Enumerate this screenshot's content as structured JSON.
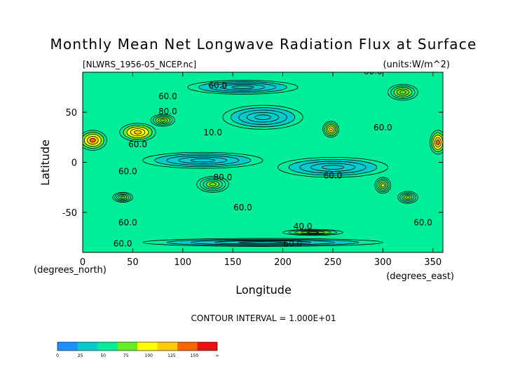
{
  "chart_data": {
    "type": "heatmap",
    "title": "Monthly Mean Net Longwave Radiation Flux at Surface",
    "source_file": "[NLWRS_1956-05_NCEP.nc]",
    "units": "(units:W/m^2)",
    "xlabel": "Longitude",
    "ylabel": "Latitude",
    "x_unit_label": "(degrees_east)",
    "y_unit_label": "(degrees_north)",
    "xlim": [
      0,
      360
    ],
    "ylim": [
      -90,
      90
    ],
    "x_ticks": [
      0,
      50,
      100,
      150,
      200,
      250,
      300,
      350
    ],
    "y_ticks": [
      50,
      0,
      -50
    ],
    "contour_interval_label": "CONTOUR INTERVAL = 1.000E+01",
    "colorbar": {
      "levels": [
        0,
        25,
        50,
        75,
        100,
        125,
        150,
        "∞"
      ],
      "level_labels": [
        "0",
        "25",
        "50",
        "75",
        "100",
        "125",
        "150",
        "∞"
      ],
      "colors": [
        "#1e90ff",
        "#00cccc",
        "#00ee99",
        "#66ee22",
        "#ffff00",
        "#ffcc00",
        "#ff6600",
        "#ee1111"
      ]
    },
    "field_background_value": 55,
    "anomalies": [
      {
        "lon": 10,
        "lat": 22,
        "value": 150,
        "rx": 14,
        "ry": 10
      },
      {
        "lon": 55,
        "lat": 30,
        "value": 140,
        "rx": 18,
        "ry": 9
      },
      {
        "lon": 80,
        "lat": 42,
        "value": 95,
        "rx": 12,
        "ry": 6
      },
      {
        "lon": 248,
        "lat": 33,
        "value": 125,
        "rx": 8,
        "ry": 8
      },
      {
        "lon": 355,
        "lat": 20,
        "value": 150,
        "rx": 8,
        "ry": 12
      },
      {
        "lon": 130,
        "lat": -22,
        "value": 85,
        "rx": 16,
        "ry": 8
      },
      {
        "lon": 300,
        "lat": -23,
        "value": 100,
        "rx": 8,
        "ry": 8
      },
      {
        "lon": 325,
        "lat": -35,
        "value": 80,
        "rx": 10,
        "ry": 6
      },
      {
        "lon": 40,
        "lat": -35,
        "value": 85,
        "rx": 10,
        "ry": 5
      },
      {
        "lon": 120,
        "lat": 2,
        "value": 30,
        "rx": 60,
        "ry": 8
      },
      {
        "lon": 250,
        "lat": -5,
        "value": 35,
        "rx": 55,
        "ry": 10
      },
      {
        "lon": 180,
        "lat": 45,
        "value": 35,
        "rx": 40,
        "ry": 12
      },
      {
        "lon": 160,
        "lat": 75,
        "value": 40,
        "rx": 55,
        "ry": 7
      },
      {
        "lon": 320,
        "lat": 70,
        "value": 90,
        "rx": 15,
        "ry": 8
      },
      {
        "lon": 180,
        "lat": -80,
        "value": 40,
        "rx": 120,
        "ry": 4
      },
      {
        "lon": 230,
        "lat": -70,
        "value": 90,
        "rx": 30,
        "ry": 3
      }
    ],
    "contour_labels": [
      {
        "text": "60.0",
        "lon": 290,
        "lat": 88
      },
      {
        "text": "60.0",
        "lon": 135,
        "lat": 74
      },
      {
        "text": "60.0",
        "lon": 85,
        "lat": 63
      },
      {
        "text": "80.0",
        "lon": 85,
        "lat": 48
      },
      {
        "text": "60.0",
        "lon": 300,
        "lat": 32
      },
      {
        "text": "10.0",
        "lon": 130,
        "lat": 27
      },
      {
        "text": "60.0",
        "lon": 55,
        "lat": 15
      },
      {
        "text": "60.0",
        "lon": 45,
        "lat": -12
      },
      {
        "text": "60.0",
        "lon": 250,
        "lat": -16
      },
      {
        "text": "80.0",
        "lon": 140,
        "lat": -18
      },
      {
        "text": "60.0",
        "lon": 160,
        "lat": -48
      },
      {
        "text": "60.0",
        "lon": 45,
        "lat": -63
      },
      {
        "text": "40.0",
        "lon": 220,
        "lat": -67
      },
      {
        "text": "60.0",
        "lon": 340,
        "lat": -63
      },
      {
        "text": "60.0",
        "lon": 40,
        "lat": -84
      },
      {
        "text": "60.0",
        "lon": 210,
        "lat": -84
      }
    ]
  }
}
